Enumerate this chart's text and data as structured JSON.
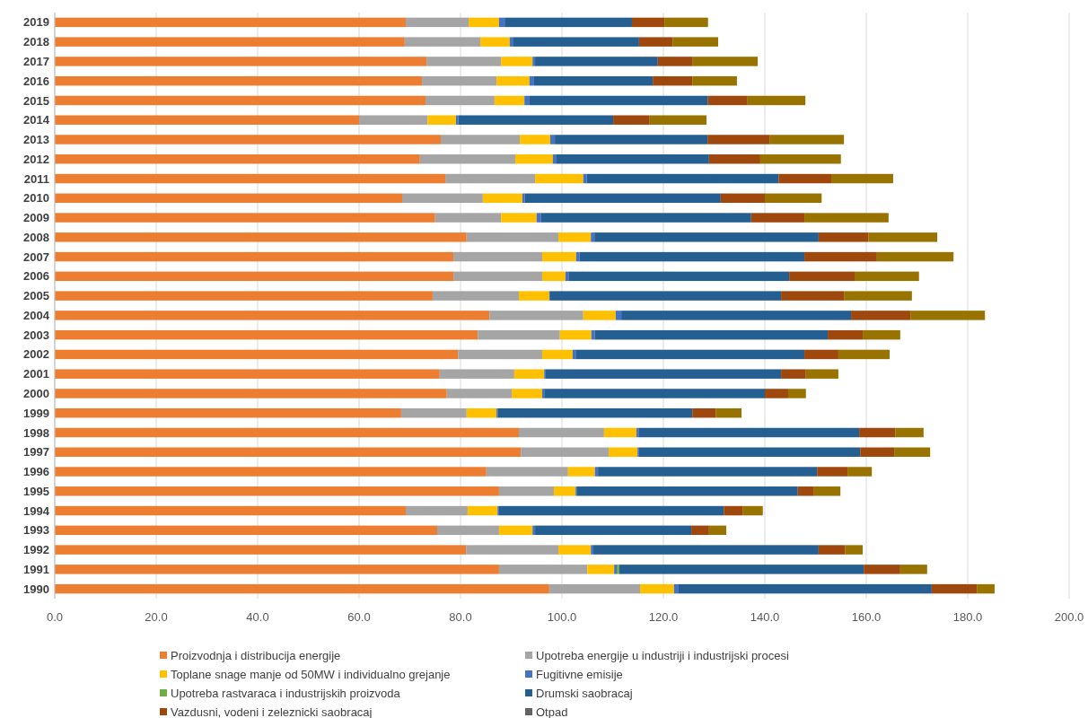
{
  "chart_data": {
    "type": "bar",
    "orientation": "horizontal",
    "stacked": true,
    "categories": [
      "2019",
      "2018",
      "2017",
      "2016",
      "2015",
      "2014",
      "2013",
      "2012",
      "2011",
      "2010",
      "2009",
      "2008",
      "2007",
      "2006",
      "2005",
      "2004",
      "2003",
      "2002",
      "2001",
      "2000",
      "1999",
      "1998",
      "1997",
      "1996",
      "1995",
      "1994",
      "1993",
      "1992",
      "1991",
      "1990"
    ],
    "series": [
      {
        "name": "Proizvodnja i distribucija energije",
        "color": "#ed7d31",
        "values": [
          69.2,
          69.0,
          73.3,
          72.4,
          73.1,
          60.0,
          76.1,
          72.0,
          77.0,
          68.5,
          75.0,
          81.2,
          78.6,
          78.6,
          74.5,
          85.7,
          83.4,
          79.5,
          75.9,
          77.3,
          68.3,
          91.5,
          91.9,
          85.1,
          87.6,
          69.2,
          75.4,
          81.1,
          87.6,
          97.5
        ]
      },
      {
        "name": "Upotreba energije u industriji i industrijski procesi",
        "color": "#a5a5a5",
        "values": [
          12.4,
          14.9,
          14.7,
          14.7,
          13.6,
          13.5,
          15.6,
          18.8,
          17.7,
          15.9,
          13.0,
          18.1,
          17.5,
          17.5,
          17.0,
          18.5,
          16.2,
          16.6,
          14.7,
          12.8,
          12.9,
          16.8,
          17.3,
          16.1,
          10.8,
          12.2,
          12.2,
          18.2,
          17.4,
          17.9
        ]
      },
      {
        "name": "Toplane snage manje od 50MW i individualno grejanje",
        "color": "#ffc000",
        "values": [
          6.0,
          5.8,
          6.2,
          6.5,
          5.9,
          5.6,
          6.0,
          7.4,
          9.5,
          7.8,
          7.0,
          6.4,
          6.7,
          4.6,
          6.0,
          6.4,
          6.2,
          6.0,
          5.9,
          6.0,
          5.9,
          6.4,
          5.7,
          5.3,
          4.3,
          5.9,
          6.6,
          6.4,
          5.3,
          6.7
        ]
      },
      {
        "name": "Fugitivne emisije",
        "color": "#4472c4",
        "values": [
          1.1,
          0.6,
          0.5,
          0.9,
          0.9,
          0.5,
          0.9,
          0.6,
          0.7,
          0.5,
          0.9,
          0.7,
          0.7,
          0.7,
          0.2,
          1.1,
          0.7,
          0.6,
          0.3,
          0.4,
          0.3,
          0.5,
          0.3,
          0.6,
          0.3,
          0.3,
          0.5,
          0.5,
          0.5,
          0.9
        ]
      },
      {
        "name": "Upotreba rastvaraca i industrijskih proizvoda",
        "color": "#70ad47",
        "values": [
          0,
          0,
          0,
          0,
          0,
          0,
          0,
          0,
          0,
          0,
          0,
          0,
          0,
          0,
          0,
          0,
          0,
          0,
          0,
          0,
          0,
          0,
          0,
          0,
          0,
          0,
          0,
          0,
          0.5,
          0
        ]
      },
      {
        "name": "Drumski saobracaj",
        "color": "#255e91",
        "values": [
          25.1,
          24.9,
          24.2,
          23.4,
          35.3,
          30.5,
          30.1,
          30.2,
          37.8,
          38.6,
          41.4,
          44.2,
          44.3,
          43.4,
          45.5,
          45.3,
          45.9,
          45.1,
          46.4,
          43.5,
          38.3,
          43.4,
          43.6,
          43.2,
          43.5,
          44.3,
          30.8,
          44.4,
          48.2,
          49.9
        ]
      },
      {
        "name": "Vazdusni, vodeni i zeleznicki saobracaj",
        "color": "#9e480e",
        "values": [
          6.4,
          6.6,
          6.9,
          7.8,
          7.8,
          7.2,
          12.2,
          10.1,
          10.4,
          8.7,
          10.5,
          9.8,
          14.3,
          12.9,
          12.4,
          11.7,
          6.9,
          6.7,
          4.9,
          4.6,
          4.6,
          7.1,
          6.7,
          6.0,
          3.2,
          3.7,
          3.5,
          5.2,
          7.2,
          8.9
        ]
      },
      {
        "name": "Otpad",
        "color": "#636363",
        "values": [
          0,
          0,
          0,
          0,
          0,
          0,
          0,
          0,
          0,
          0,
          0,
          0,
          0,
          0,
          0,
          0,
          0,
          0,
          0,
          0,
          0,
          0,
          0,
          0,
          0,
          0,
          0,
          0,
          0,
          0
        ]
      },
      {
        "color": "#997300",
        "values": [
          8.6,
          9.0,
          12.8,
          8.8,
          11.4,
          11.2,
          14.7,
          15.9,
          12.2,
          11.2,
          16.6,
          13.6,
          15.1,
          12.7,
          13.4,
          14.7,
          7.4,
          10.1,
          6.4,
          3.5,
          5.1,
          5.6,
          7.1,
          4.8,
          5.2,
          4.0,
          3.4,
          3.5,
          5.3,
          3.5
        ]
      }
    ],
    "xlim": [
      0,
      200
    ],
    "xticks": [
      {
        "value": 0,
        "label": "0.0"
      },
      {
        "value": 20,
        "label": "20.0"
      },
      {
        "value": 40,
        "label": "40.0"
      },
      {
        "value": 60,
        "label": "60.0"
      },
      {
        "value": 80,
        "label": "80.0"
      },
      {
        "value": 100,
        "label": "100.0"
      },
      {
        "value": 120,
        "label": "120.0"
      },
      {
        "value": 140,
        "label": "140.0"
      },
      {
        "value": 160,
        "label": "160.0"
      },
      {
        "value": 180,
        "label": "180.0"
      },
      {
        "value": 200,
        "label": "200.0"
      }
    ],
    "grid": "x",
    "legend": "bottom"
  }
}
